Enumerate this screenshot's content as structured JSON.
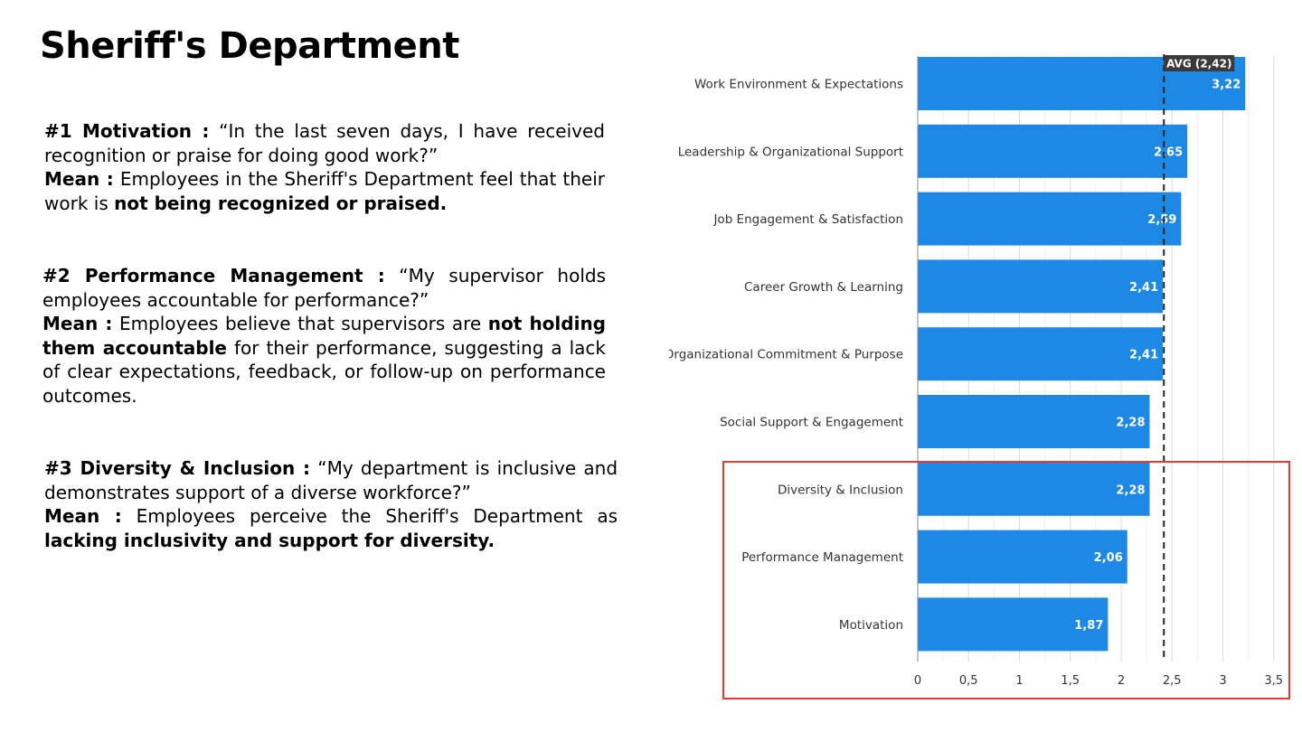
{
  "page": {
    "title": "Sheriff's Department"
  },
  "findings": [
    {
      "head": "#1 Motivation :",
      "question": "“In the last seven days, I have received recognition or praise for doing good work?”",
      "mean_label": "Mean :",
      "mean_text": "Employees in the Sheriff's Department feel that their work is",
      "mean_bold": "not being recognized or praised.",
      "mean_tail": ""
    },
    {
      "head": "#2 Performance Management :",
      "question": "“My supervisor holds employees accountable for performance?”",
      "mean_label": "Mean :",
      "mean_text": "Employees believe that supervisors are",
      "mean_bold": "not holding them accountable",
      "mean_tail": "for their performance, suggesting a lack of clear expectations, feedback, or follow-up on performance outcomes."
    },
    {
      "head": "#3 Diversity & Inclusion :",
      "question": "“My department is inclusive and demonstrates support of a diverse workforce?”",
      "mean_label": "Mean :",
      "mean_text": "Employees perceive the Sheriff's Department as",
      "mean_bold": "lacking inclusivity and support for diversity.",
      "mean_tail": ""
    }
  ],
  "chart_data": {
    "type": "bar",
    "orientation": "horizontal",
    "categories": [
      "Work Environment & Expectations",
      "Leadership & Organizational Support",
      "Job Engagement & Satisfaction",
      "Career Growth & Learning",
      "Organizational Commitment & Purpose",
      "Social Support & Engagement",
      "Diversity & Inclusion",
      "Performance Management",
      "Motivation"
    ],
    "values": [
      3.22,
      2.65,
      2.59,
      2.41,
      2.41,
      2.28,
      2.28,
      2.06,
      1.87
    ],
    "value_labels": [
      "3,22",
      "2,65",
      "2,59",
      "2,41",
      "2,41",
      "2,28",
      "2,28",
      "2,06",
      "1,87"
    ],
    "xlim": [
      0,
      3.5
    ],
    "xticks": [
      0,
      0.5,
      1,
      1.5,
      2,
      2.5,
      3,
      3.5
    ],
    "xtick_labels": [
      "0",
      "0,5",
      "1",
      "1,5",
      "2",
      "2,5",
      "3",
      "3,5"
    ],
    "reference_line": {
      "value": 2.42,
      "label": "AVG (2,42)",
      "style": "dashed"
    },
    "highlight_categories": [
      "Diversity & Inclusion",
      "Performance Management",
      "Motivation"
    ],
    "grid": true,
    "bar_color": "#1e88e5",
    "highlight_color": "#e53935"
  }
}
